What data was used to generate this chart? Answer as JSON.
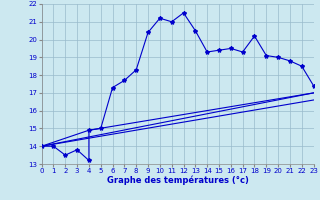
{
  "xlabel": "Graphe des températures (°c)",
  "xlim": [
    0,
    23
  ],
  "ylim": [
    13,
    22
  ],
  "yticks": [
    13,
    14,
    15,
    16,
    17,
    18,
    19,
    20,
    21,
    22
  ],
  "xticks": [
    0,
    1,
    2,
    3,
    4,
    5,
    6,
    7,
    8,
    9,
    10,
    11,
    12,
    13,
    14,
    15,
    16,
    17,
    18,
    19,
    20,
    21,
    22,
    23
  ],
  "bg_color": "#cce8f0",
  "line_color": "#0000cc",
  "grid_color": "#99bbcc",
  "main_x": [
    0,
    1,
    2,
    3,
    4,
    4,
    5,
    6,
    7,
    8,
    9,
    10,
    11,
    12,
    13,
    14,
    15,
    16,
    17,
    18,
    19,
    20,
    21,
    22,
    23
  ],
  "main_y": [
    14,
    14,
    13.5,
    13.8,
    13.2,
    14.9,
    15.0,
    17.3,
    17.7,
    18.3,
    20.4,
    21.2,
    21.0,
    21.5,
    20.5,
    19.3,
    19.4,
    19.5,
    19.3,
    20.2,
    19.1,
    19.0,
    18.8,
    18.5,
    17.4
  ],
  "ref_lines": [
    {
      "x": [
        0,
        23
      ],
      "y": [
        14,
        17.0
      ]
    },
    {
      "x": [
        0,
        23
      ],
      "y": [
        14,
        16.6
      ]
    },
    {
      "x": [
        0,
        4,
        23
      ],
      "y": [
        14,
        14.9,
        17.0
      ]
    }
  ]
}
